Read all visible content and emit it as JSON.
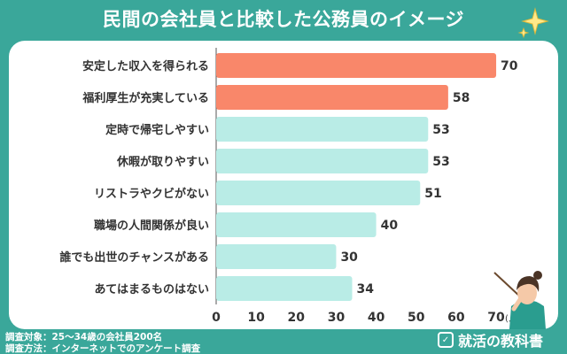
{
  "header": {
    "title": "民間の会社員と比較した公務員のイメージ"
  },
  "footer": {
    "survey_target": "調査対象：25〜34歳の会社員200名",
    "survey_method": "調査方法：インターネットでのアンケート調査",
    "brand": "就活の教科書"
  },
  "colors": {
    "highlight": "#f9876a",
    "normal": "#b9ece6",
    "background": "#3aa79a",
    "panel": "#ffffff"
  },
  "chart_data": {
    "type": "bar",
    "orientation": "horizontal",
    "categories": [
      "安定した収入を得られる",
      "福利厚生が充実している",
      "定時で帰宅しやすい",
      "休暇が取りやすい",
      "リストラやクビがない",
      "職場の人間関係が良い",
      "誰でも出世のチャンスがある",
      "あてはまるものはない"
    ],
    "values": [
      70,
      58,
      53,
      53,
      51,
      40,
      30,
      34
    ],
    "highlighted": [
      true,
      true,
      false,
      false,
      false,
      false,
      false,
      false
    ],
    "xticks": [
      0,
      10,
      20,
      30,
      40,
      50,
      60,
      70
    ],
    "xunit": "(人)",
    "xlim": [
      0,
      70
    ],
    "grid": false
  }
}
